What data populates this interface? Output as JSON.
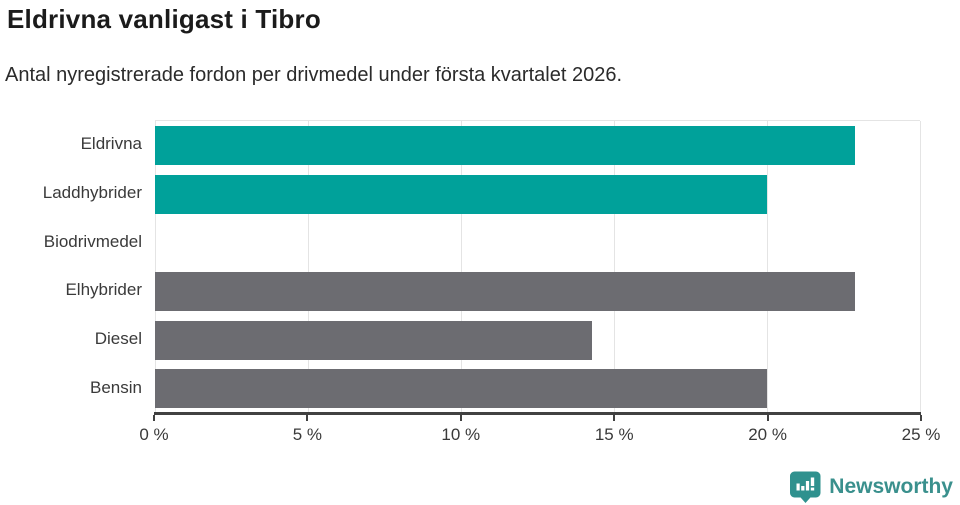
{
  "header": {
    "title": "Eldrivna vanligast i Tibro",
    "subtitle": "Antal nyregistrerade fordon per drivmedel under första kvartalet 2026."
  },
  "chart_data": {
    "type": "bar",
    "orientation": "horizontal",
    "title": "Eldrivna vanligast i Tibro",
    "subtitle": "Antal nyregistrerade fordon per drivmedel under första kvartalet 2026.",
    "categories": [
      "Eldrivna",
      "Laddhybrider",
      "Biodrivmedel",
      "Elhybrider",
      "Diesel",
      "Bensin"
    ],
    "values": [
      22.86,
      20.0,
      0,
      22.86,
      14.29,
      20.0
    ],
    "unit": "%",
    "bar_colors": [
      "#00a19a",
      "#00a19a",
      "#00a19a",
      "#6c6c71",
      "#6c6c71",
      "#6c6c71"
    ],
    "xlim": [
      0,
      25
    ],
    "x_ticks": [
      {
        "value": 0,
        "label": "0 %"
      },
      {
        "value": 5,
        "label": "5 %"
      },
      {
        "value": 10,
        "label": "10 %"
      },
      {
        "value": 15,
        "label": "15 %"
      },
      {
        "value": 20,
        "label": "20 %"
      },
      {
        "value": 25,
        "label": "25 %"
      }
    ],
    "grid": "vertical-light",
    "legend": "none",
    "highlight_color": "#00a19a",
    "muted_color": "#6c6c71"
  },
  "footer": {
    "brand": "Newsworthy",
    "brand_color": "#3a908d",
    "icon_color": "#2f918e"
  }
}
